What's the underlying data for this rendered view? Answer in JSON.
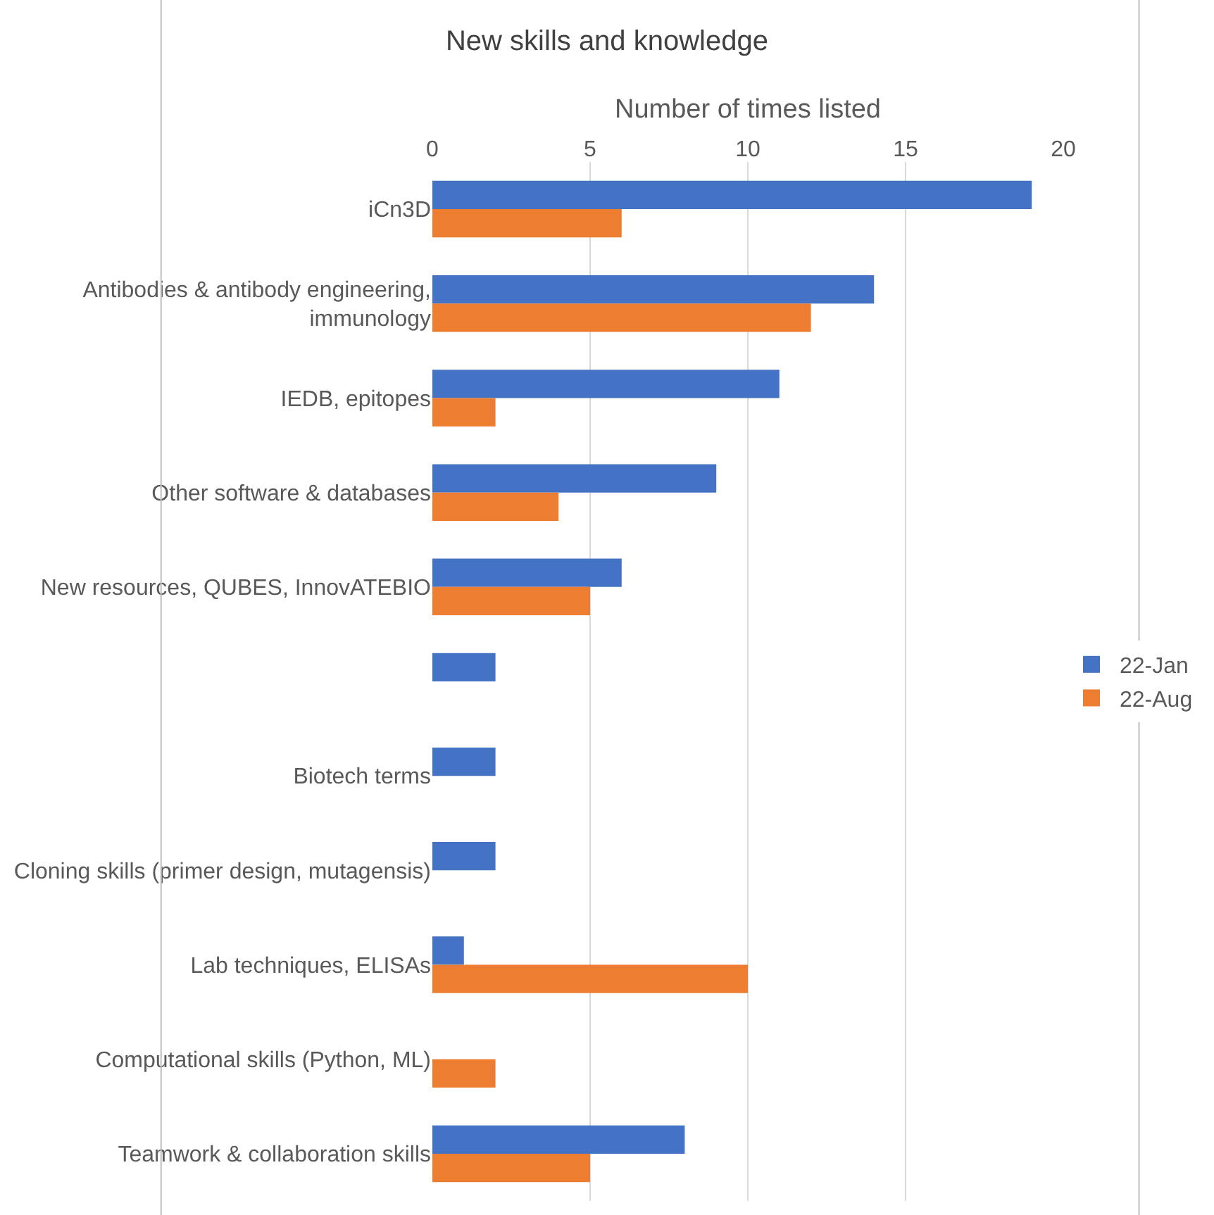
{
  "chart_data": {
    "type": "bar",
    "orientation": "horizontal",
    "title": "New skills and knowledge",
    "xlabel": "Number of times listed",
    "categories": [
      "iCn3D",
      "Antibodies & antibody engineering, immunology",
      "IEDB, epitopes",
      "Other software & databases",
      "New resources, QUBES, InnovATEBIO",
      null,
      "Biotech terms",
      "Cloning skills (primer design, mutagensis)",
      "Lab techniques, ELISAs",
      "Computational skills (Python, ML)",
      "Teamwork & collaboration skills"
    ],
    "series": [
      {
        "name": "22-Jan",
        "color": "#4472c4",
        "values": [
          19,
          14,
          11,
          9,
          6,
          2,
          2,
          2,
          1,
          null,
          8
        ]
      },
      {
        "name": "22-Aug",
        "color": "#ed7d31",
        "values": [
          6,
          12,
          2,
          4,
          5,
          null,
          null,
          null,
          10,
          2,
          5
        ]
      }
    ],
    "xlim": [
      0,
      20
    ],
    "xticks": [
      0,
      5,
      10,
      15,
      20
    ],
    "grid": "x",
    "legend": "right"
  }
}
